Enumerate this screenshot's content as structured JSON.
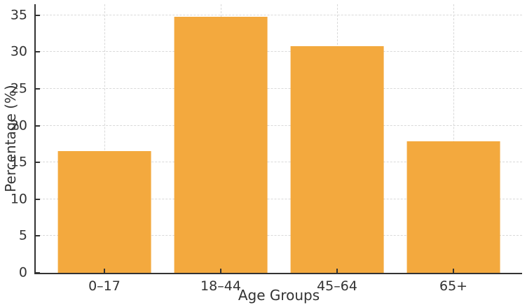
{
  "chart_data": {
    "type": "bar",
    "title": "",
    "categories": [
      "0–17",
      "18–44",
      "45–64",
      "65+"
    ],
    "values": [
      16.5,
      34.8,
      30.8,
      17.9
    ],
    "xlabel": "Age Groups",
    "ylabel": "Percentage (%)",
    "ylim": [
      0,
      36.5
    ],
    "yticks": [
      0,
      5,
      10,
      15,
      20,
      25,
      30,
      35
    ],
    "grid": true,
    "legend": "none",
    "bar_color": "#F3A93E",
    "grid_color": "#d9d9d9",
    "axis_color": "#333333",
    "tick_label_color": "#333333",
    "bar_width_fraction": 0.8
  }
}
